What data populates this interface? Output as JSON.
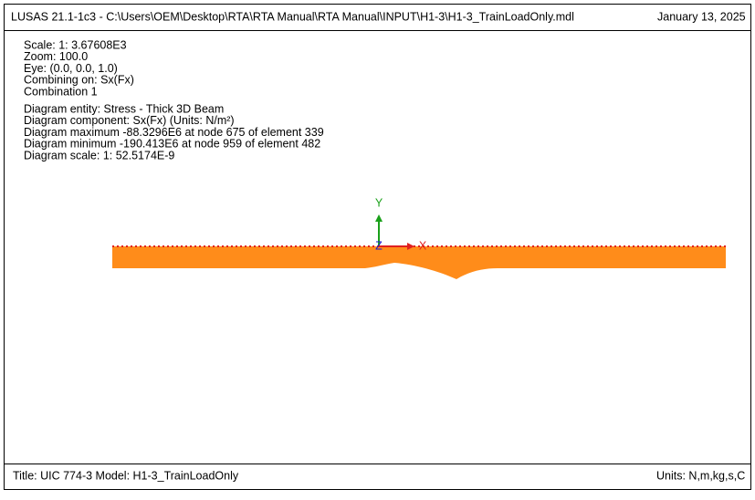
{
  "header": {
    "title": "LUSAS 21.1-1c3 - C:\\Users\\OEM\\Desktop\\RTA\\RTA Manual\\RTA Manual\\INPUT\\H1-3\\H1-3_TrainLoadOnly.mdl",
    "date": "January 13, 2025"
  },
  "view_info": [
    "Scale: 1: 3.67608E3",
    "Zoom: 100.0",
    "Eye: (0.0, 0.0, 1.0)",
    "Combining on: Sx(Fx)",
    "Combination 1"
  ],
  "diagram_info": [
    "Diagram entity: Stress - Thick 3D Beam",
    "Diagram component: Sx(Fx) (Units: N/m²)",
    "Diagram maximum -88.3296E6 at node 675 of element 339",
    "Diagram minimum -190.413E6 at node 959 of element 482",
    "Diagram scale: 1: 52.5174E-9"
  ],
  "axes": {
    "y": "Y",
    "z": "Z",
    "x": "X"
  },
  "footer": {
    "title": "Title: UIC 774-3 Model: H1-3_TrainLoadOnly",
    "units": "Units: N,m,kg,s,C"
  }
}
